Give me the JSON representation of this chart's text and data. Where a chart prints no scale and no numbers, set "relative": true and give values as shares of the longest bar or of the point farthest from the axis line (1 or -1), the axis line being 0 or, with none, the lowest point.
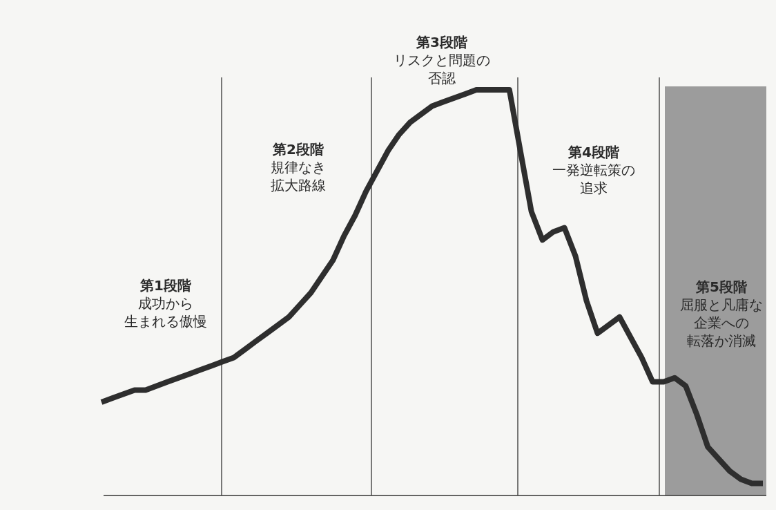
{
  "chart_data": {
    "type": "line",
    "relative": true,
    "color": "#2e2e2e",
    "line_style": "solid",
    "categories": [
      null,
      null,
      null,
      null,
      null,
      null,
      null,
      null,
      null,
      null,
      null,
      null,
      null,
      null,
      null,
      null,
      null,
      null,
      null,
      null,
      null,
      null,
      null,
      null,
      null,
      null,
      null,
      null,
      null,
      null,
      null,
      null,
      null,
      null,
      null,
      null,
      null,
      null,
      null,
      null,
      null,
      null,
      null,
      null,
      null,
      null,
      null,
      null,
      null,
      null,
      null,
      null,
      null,
      null,
      null,
      null,
      null,
      null,
      null,
      null,
      null
    ],
    "values": [
      0.23,
      0.24,
      0.25,
      0.26,
      0.26,
      0.27,
      0.28,
      0.29,
      0.3,
      0.31,
      0.32,
      0.33,
      0.34,
      0.36,
      0.38,
      0.4,
      0.42,
      0.44,
      0.47,
      0.5,
      0.54,
      0.58,
      0.64,
      0.69,
      0.75,
      0.8,
      0.85,
      0.89,
      0.92,
      0.94,
      0.96,
      0.97,
      0.98,
      0.99,
      1,
      1,
      1,
      1,
      0.85,
      0.7,
      0.63,
      0.65,
      0.66,
      0.59,
      0.48,
      0.4,
      0.42,
      0.44,
      0.39,
      0.34,
      0.28,
      0.28,
      0.29,
      0.27,
      0.2,
      0.12,
      0.09,
      0.06,
      0.04,
      0.03,
      0.03
    ],
    "annotations": [
      "第1段階",
      "成功から生まれる傲慢",
      "第2段階",
      "規律なき拡大路線",
      "第3段階",
      "リスクと問題の否認",
      "第4段階",
      "一発逆転策の追求",
      "第5段階",
      "屈服と凡庸な企業への転落か消滅"
    ]
  }
}
